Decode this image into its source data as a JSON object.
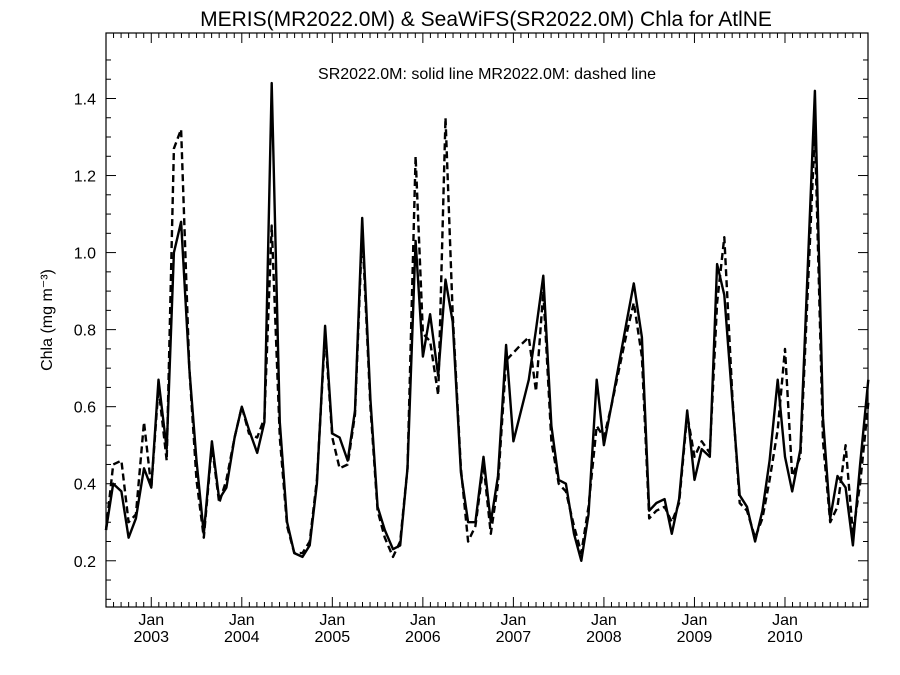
{
  "chart_data": {
    "type": "line",
    "title": "MERIS(MR2022.0M) & SeaWiFS(SR2022.0M)  Chla for AtlNE",
    "annotation": "SR2022.0M: solid line   MR2022.0M: dashed line",
    "ylabel": "Chla (mg m⁻³)",
    "xlim": [
      2002.5,
      2010.917
    ],
    "ylim": [
      0.08,
      1.57
    ],
    "y_ticks": [
      0.2,
      0.4,
      0.6,
      0.8,
      1.0,
      1.2,
      1.4
    ],
    "y_tick_labels": [
      "0.2",
      "0.4",
      "0.6",
      "0.8",
      "1.0",
      "1.2",
      "1.4"
    ],
    "x_ticks": [
      {
        "pos": 2003.0,
        "month": "Jan",
        "year": "2003"
      },
      {
        "pos": 2004.0,
        "month": "Jan",
        "year": "2004"
      },
      {
        "pos": 2005.0,
        "month": "Jan",
        "year": "2005"
      },
      {
        "pos": 2006.0,
        "month": "Jan",
        "year": "2006"
      },
      {
        "pos": 2007.0,
        "month": "Jan",
        "year": "2007"
      },
      {
        "pos": 2008.0,
        "month": "Jan",
        "year": "2008"
      },
      {
        "pos": 2009.0,
        "month": "Jan",
        "year": "2009"
      },
      {
        "pos": 2010.0,
        "month": "Jan",
        "year": "2010"
      }
    ],
    "series": [
      {
        "name": "SR2022.0M",
        "style": "solid",
        "color": "#000000",
        "points": [
          [
            2002.5,
            0.28
          ],
          [
            2002.58,
            0.4
          ],
          [
            2002.67,
            0.38
          ],
          [
            2002.75,
            0.26
          ],
          [
            2002.83,
            0.31
          ],
          [
            2002.92,
            0.44
          ],
          [
            2003.0,
            0.39
          ],
          [
            2003.08,
            0.67
          ],
          [
            2003.17,
            0.49
          ],
          [
            2003.25,
            1.0
          ],
          [
            2003.33,
            1.08
          ],
          [
            2003.42,
            0.7
          ],
          [
            2003.5,
            0.46
          ],
          [
            2003.58,
            0.27
          ],
          [
            2003.67,
            0.51
          ],
          [
            2003.75,
            0.36
          ],
          [
            2003.83,
            0.39
          ],
          [
            2003.92,
            0.52
          ],
          [
            2004.0,
            0.6
          ],
          [
            2004.08,
            0.54
          ],
          [
            2004.17,
            0.48
          ],
          [
            2004.25,
            0.56
          ],
          [
            2004.33,
            1.44
          ],
          [
            2004.42,
            0.56
          ],
          [
            2004.5,
            0.3
          ],
          [
            2004.58,
            0.22
          ],
          [
            2004.67,
            0.21
          ],
          [
            2004.75,
            0.24
          ],
          [
            2004.83,
            0.4
          ],
          [
            2004.92,
            0.81
          ],
          [
            2005.0,
            0.53
          ],
          [
            2005.08,
            0.52
          ],
          [
            2005.17,
            0.46
          ],
          [
            2005.25,
            0.59
          ],
          [
            2005.33,
            1.09
          ],
          [
            2005.42,
            0.62
          ],
          [
            2005.5,
            0.34
          ],
          [
            2005.58,
            0.28
          ],
          [
            2005.67,
            0.23
          ],
          [
            2005.75,
            0.24
          ],
          [
            2005.83,
            0.44
          ],
          [
            2005.92,
            1.03
          ],
          [
            2006.0,
            0.73
          ],
          [
            2006.08,
            0.84
          ],
          [
            2006.17,
            0.68
          ],
          [
            2006.25,
            0.93
          ],
          [
            2006.33,
            0.82
          ],
          [
            2006.42,
            0.43
          ],
          [
            2006.5,
            0.3
          ],
          [
            2006.58,
            0.3
          ],
          [
            2006.67,
            0.47
          ],
          [
            2006.75,
            0.3
          ],
          [
            2006.83,
            0.42
          ],
          [
            2006.92,
            0.76
          ],
          [
            2007.0,
            0.51
          ],
          [
            2007.17,
            0.67
          ],
          [
            2007.25,
            0.8
          ],
          [
            2007.33,
            0.94
          ],
          [
            2007.42,
            0.55
          ],
          [
            2007.5,
            0.41
          ],
          [
            2007.58,
            0.4
          ],
          [
            2007.67,
            0.27
          ],
          [
            2007.75,
            0.2
          ],
          [
            2007.83,
            0.32
          ],
          [
            2007.92,
            0.67
          ],
          [
            2008.0,
            0.5
          ],
          [
            2008.08,
            0.6
          ],
          [
            2008.25,
            0.82
          ],
          [
            2008.33,
            0.92
          ],
          [
            2008.42,
            0.78
          ],
          [
            2008.5,
            0.33
          ],
          [
            2008.58,
            0.35
          ],
          [
            2008.67,
            0.36
          ],
          [
            2008.75,
            0.27
          ],
          [
            2008.83,
            0.36
          ],
          [
            2008.92,
            0.59
          ],
          [
            2009.0,
            0.41
          ],
          [
            2009.08,
            0.49
          ],
          [
            2009.17,
            0.47
          ],
          [
            2009.25,
            0.97
          ],
          [
            2009.33,
            0.89
          ],
          [
            2009.42,
            0.61
          ],
          [
            2009.5,
            0.37
          ],
          [
            2009.58,
            0.34
          ],
          [
            2009.67,
            0.25
          ],
          [
            2009.75,
            0.33
          ],
          [
            2009.83,
            0.46
          ],
          [
            2009.92,
            0.67
          ],
          [
            2010.0,
            0.47
          ],
          [
            2010.08,
            0.38
          ],
          [
            2010.17,
            0.49
          ],
          [
            2010.33,
            1.42
          ],
          [
            2010.42,
            0.57
          ],
          [
            2010.5,
            0.31
          ],
          [
            2010.58,
            0.42
          ],
          [
            2010.67,
            0.39
          ],
          [
            2010.75,
            0.24
          ],
          [
            2010.83,
            0.45
          ],
          [
            2010.92,
            0.67
          ]
        ]
      },
      {
        "name": "MR2022.0M",
        "style": "dashed",
        "color": "#000000",
        "points": [
          [
            2002.5,
            0.28
          ],
          [
            2002.58,
            0.45
          ],
          [
            2002.67,
            0.46
          ],
          [
            2002.75,
            0.3
          ],
          [
            2002.83,
            0.32
          ],
          [
            2002.92,
            0.56
          ],
          [
            2003.0,
            0.39
          ],
          [
            2003.08,
            0.65
          ],
          [
            2003.17,
            0.46
          ],
          [
            2003.25,
            1.27
          ],
          [
            2003.33,
            1.32
          ],
          [
            2003.42,
            0.7
          ],
          [
            2003.5,
            0.41
          ],
          [
            2003.58,
            0.26
          ],
          [
            2003.67,
            0.5
          ],
          [
            2003.75,
            0.35
          ],
          [
            2003.83,
            0.41
          ],
          [
            2003.92,
            0.52
          ],
          [
            2004.0,
            0.6
          ],
          [
            2004.08,
            0.53
          ],
          [
            2004.17,
            0.52
          ],
          [
            2004.25,
            0.57
          ],
          [
            2004.33,
            1.07
          ],
          [
            2004.42,
            0.52
          ],
          [
            2004.5,
            0.29
          ],
          [
            2004.58,
            0.22
          ],
          [
            2004.67,
            0.22
          ],
          [
            2004.75,
            0.25
          ],
          [
            2004.83,
            0.41
          ],
          [
            2004.92,
            0.79
          ],
          [
            2005.0,
            0.52
          ],
          [
            2005.08,
            0.44
          ],
          [
            2005.17,
            0.45
          ],
          [
            2005.25,
            0.58
          ],
          [
            2005.33,
            1.06
          ],
          [
            2005.42,
            0.6
          ],
          [
            2005.5,
            0.33
          ],
          [
            2005.58,
            0.26
          ],
          [
            2005.67,
            0.21
          ],
          [
            2005.75,
            0.25
          ],
          [
            2005.83,
            0.44
          ],
          [
            2005.92,
            1.25
          ],
          [
            2006.0,
            0.79
          ],
          [
            2006.08,
            0.77
          ],
          [
            2006.17,
            0.63
          ],
          [
            2006.25,
            1.35
          ],
          [
            2006.33,
            0.84
          ],
          [
            2006.42,
            0.44
          ],
          [
            2006.5,
            0.25
          ],
          [
            2006.58,
            0.29
          ],
          [
            2006.67,
            0.45
          ],
          [
            2006.75,
            0.27
          ],
          [
            2006.83,
            0.4
          ],
          [
            2006.92,
            0.72
          ],
          [
            2007.0,
            0.74
          ],
          [
            2007.08,
            0.76
          ],
          [
            2007.17,
            0.78
          ],
          [
            2007.25,
            0.64
          ],
          [
            2007.33,
            0.9
          ],
          [
            2007.42,
            0.51
          ],
          [
            2007.5,
            0.4
          ],
          [
            2007.58,
            0.38
          ],
          [
            2007.67,
            0.29
          ],
          [
            2007.75,
            0.22
          ],
          [
            2007.83,
            0.34
          ],
          [
            2007.92,
            0.55
          ],
          [
            2008.0,
            0.52
          ],
          [
            2008.08,
            0.6
          ],
          [
            2008.25,
            0.79
          ],
          [
            2008.33,
            0.87
          ],
          [
            2008.42,
            0.73
          ],
          [
            2008.5,
            0.31
          ],
          [
            2008.58,
            0.33
          ],
          [
            2008.67,
            0.34
          ],
          [
            2008.75,
            0.3
          ],
          [
            2008.83,
            0.35
          ],
          [
            2008.92,
            0.58
          ],
          [
            2009.0,
            0.47
          ],
          [
            2009.08,
            0.51
          ],
          [
            2009.17,
            0.48
          ],
          [
            2009.25,
            0.87
          ],
          [
            2009.33,
            1.04
          ],
          [
            2009.42,
            0.62
          ],
          [
            2009.5,
            0.35
          ],
          [
            2009.58,
            0.33
          ],
          [
            2009.67,
            0.26
          ],
          [
            2009.75,
            0.31
          ],
          [
            2009.83,
            0.41
          ],
          [
            2009.92,
            0.54
          ],
          [
            2010.0,
            0.75
          ],
          [
            2010.08,
            0.42
          ],
          [
            2010.17,
            0.47
          ],
          [
            2010.33,
            1.32
          ],
          [
            2010.42,
            0.51
          ],
          [
            2010.5,
            0.3
          ],
          [
            2010.58,
            0.34
          ],
          [
            2010.67,
            0.5
          ],
          [
            2010.75,
            0.27
          ],
          [
            2010.83,
            0.4
          ],
          [
            2010.92,
            0.61
          ]
        ]
      }
    ]
  }
}
